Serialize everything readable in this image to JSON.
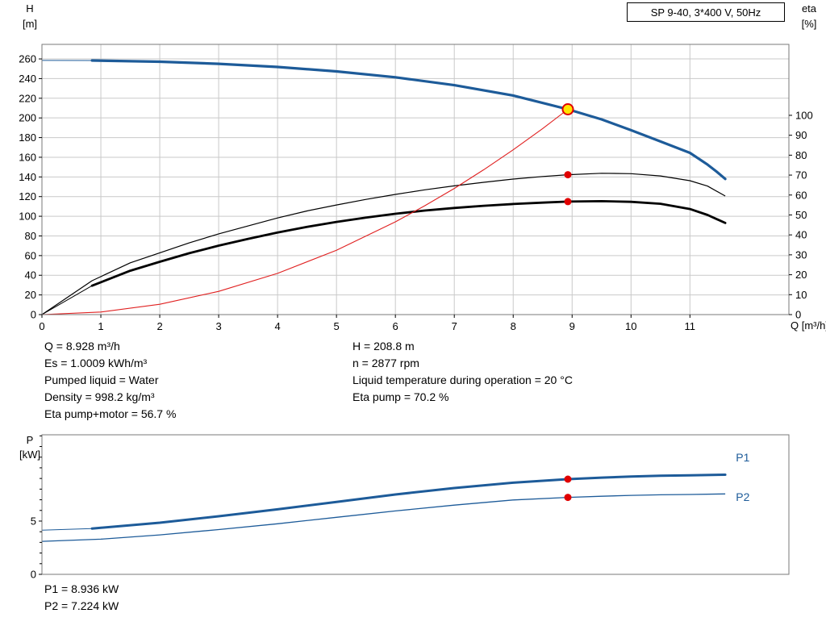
{
  "colors": {
    "curve_blue": "#1d5b99",
    "curve_black": "#000000",
    "curve_red": "#e02020",
    "marker_red": "#e00000",
    "marker_yellow": "#ffe400",
    "label_blue": "#1d5b99",
    "grid": "#c9c9c9",
    "frame": "#7a7a7a",
    "text": "#000000"
  },
  "header": {
    "title_box": "SP 9-40, 3*400 V, 50Hz"
  },
  "top_chart": {
    "h_label": "H",
    "h_unit": "[m]",
    "eta_label": "eta",
    "eta_unit": "[%]",
    "q_label": "Q [m³/h]"
  },
  "bottom_chart": {
    "p_label": "P",
    "p_unit": "[kW]"
  },
  "info_panel": {
    "left": [
      "Q = 8.928 m³/h",
      "Es = 1.0009 kWh/m³",
      "Pumped liquid = Water",
      "Density = 998.2 kg/m³",
      "Eta pump+motor = 56.7 %"
    ],
    "right": [
      "H = 208.8 m",
      "n = 2877 rpm",
      "Liquid temperature during operation = 20 °C",
      "Eta pump = 70.2 %"
    ]
  },
  "footer": {
    "lines": [
      "P1 = 8.936 kW",
      "P2 = 7.224 kW"
    ]
  },
  "chart_data": [
    {
      "type": "line",
      "name": "qh-eta-chart",
      "title": "SP 9-40, 3*400 V, 50Hz",
      "x_axis": {
        "label": "Q [m³/h]",
        "min": 0,
        "max": 12.68,
        "ticks": [
          0,
          1,
          2,
          3,
          4,
          5,
          6,
          7,
          8,
          9,
          10,
          11
        ]
      },
      "y_left": {
        "label": "H [m]",
        "min": 0,
        "max": 274.8,
        "ticks": [
          0,
          20,
          40,
          60,
          80,
          100,
          120,
          140,
          160,
          180,
          200,
          220,
          240,
          260
        ]
      },
      "y_right": {
        "label": "eta [%]",
        "min": 0,
        "max": 135.6,
        "ticks": [
          0,
          10,
          20,
          30,
          40,
          50,
          60,
          70,
          80,
          90,
          100
        ]
      },
      "series": [
        {
          "name": "h-q",
          "axis": "left",
          "color": "curve_blue",
          "width": 3.2,
          "thin_until": 0.85,
          "x": [
            0,
            0.85,
            2,
            3,
            4,
            5,
            6,
            7,
            8,
            8.928,
            9.5,
            10,
            10.5,
            11,
            11.3,
            11.45,
            11.6
          ],
          "y": [
            258.5,
            258.4,
            257.2,
            255.0,
            251.8,
            247.3,
            241.3,
            233.3,
            222.8,
            208.8,
            198.5,
            187.5,
            176.0,
            164.5,
            152.5,
            145.5,
            138.0
          ]
        },
        {
          "name": "eta-pump",
          "axis": "right",
          "color": "curve_black",
          "width": 1.2,
          "x": [
            0,
            0.85,
            1.5,
            2,
            2.5,
            3,
            3.5,
            4,
            4.5,
            5,
            5.5,
            6,
            6.5,
            7,
            7.5,
            8,
            8.5,
            8.928,
            9.5,
            10,
            10.5,
            11,
            11.3,
            11.6
          ],
          "y": [
            0,
            17,
            26,
            31,
            36,
            40.5,
            44.5,
            48.5,
            52,
            55,
            57.8,
            60.3,
            62.6,
            64.6,
            66.4,
            68,
            69.3,
            70.2,
            70.9,
            70.7,
            69.6,
            67.2,
            64.5,
            59.5
          ]
        },
        {
          "name": "eta-pump-motor",
          "axis": "right",
          "color": "curve_black",
          "width": 2.8,
          "thin_until": 0.85,
          "x": [
            0,
            0.85,
            1.5,
            2,
            2.5,
            3,
            3.5,
            4,
            4.5,
            5,
            5.5,
            6,
            6.5,
            7,
            7.5,
            8,
            8.5,
            8.928,
            9.5,
            10,
            10.5,
            11,
            11.3,
            11.6
          ],
          "y": [
            0,
            14.5,
            22,
            26.5,
            30.8,
            34.6,
            38,
            41.2,
            44,
            46.5,
            48.7,
            50.6,
            52.2,
            53.5,
            54.6,
            55.5,
            56.2,
            56.7,
            56.9,
            56.6,
            55.6,
            53.0,
            50.0,
            46.0
          ]
        },
        {
          "name": "duty-trajectory",
          "axis": "left",
          "color": "curve_red",
          "width": 1.1,
          "x": [
            0,
            1,
            2,
            3,
            4,
            5,
            6,
            6.5,
            7,
            7.5,
            8,
            8.5,
            8.928
          ],
          "y": [
            0,
            2.6,
            10.5,
            23.6,
            41.9,
            65.5,
            94.3,
            110.7,
            128.3,
            147.3,
            167.6,
            189.2,
            208.8
          ]
        }
      ],
      "markers": [
        {
          "name": "duty-point",
          "x": 8.928,
          "y": 208.8,
          "axis": "left",
          "r": 6.5,
          "fill": "marker_yellow",
          "stroke": "marker_red",
          "stroke_width": 2,
          "interactable": true
        },
        {
          "name": "eta-pump-duty-dot",
          "x": 8.928,
          "y": 70.2,
          "axis": "right",
          "r": 4.5,
          "fill": "marker_red"
        },
        {
          "name": "eta-pump-motor-duty-dot",
          "x": 8.928,
          "y": 56.7,
          "axis": "right",
          "r": 4.5,
          "fill": "marker_red"
        }
      ]
    },
    {
      "type": "line",
      "name": "power-chart",
      "x_axis": {
        "label": "",
        "min": 0,
        "max": 12.68,
        "ticks": [],
        "grid": false
      },
      "y_left": {
        "label": "P [kW]",
        "min": 0,
        "max": 13.1,
        "ticks": [
          0,
          5
        ],
        "minor_step": 1,
        "grid": false
      },
      "series": [
        {
          "name": "p1",
          "axis": "left",
          "color": "curve_blue",
          "width": 3.0,
          "thin_until": 0.85,
          "x": [
            0,
            0.85,
            2,
            3,
            4,
            5,
            6,
            7,
            8,
            8.928,
            9.5,
            10,
            10.5,
            11,
            11.6
          ],
          "y": [
            4.15,
            4.3,
            4.85,
            5.45,
            6.1,
            6.8,
            7.5,
            8.1,
            8.6,
            8.936,
            9.08,
            9.18,
            9.25,
            9.3,
            9.35
          ]
        },
        {
          "name": "p2",
          "axis": "left",
          "color": "curve_blue",
          "width": 1.3,
          "x": [
            0,
            1,
            2,
            3,
            4,
            5,
            6,
            7,
            8,
            8.928,
            9.5,
            10,
            10.5,
            11,
            11.6
          ],
          "y": [
            3.1,
            3.3,
            3.7,
            4.2,
            4.75,
            5.35,
            5.95,
            6.5,
            6.98,
            7.224,
            7.33,
            7.41,
            7.47,
            7.5,
            7.55
          ]
        }
      ],
      "markers": [
        {
          "name": "p1-duty-dot",
          "x": 8.928,
          "y": 8.936,
          "axis": "left",
          "r": 4.5,
          "fill": "marker_red"
        },
        {
          "name": "p2-duty-dot",
          "x": 8.928,
          "y": 7.224,
          "axis": "left",
          "r": 4.5,
          "fill": "marker_red"
        }
      ],
      "labels": [
        {
          "name": "p1-curve-label",
          "text": "P1",
          "x": 11.78,
          "y": 10.6,
          "axis": "left",
          "color": "label_blue"
        },
        {
          "name": "p2-curve-label",
          "text": "P2",
          "x": 11.78,
          "y": 6.9,
          "axis": "left",
          "color": "label_blue"
        }
      ]
    }
  ]
}
